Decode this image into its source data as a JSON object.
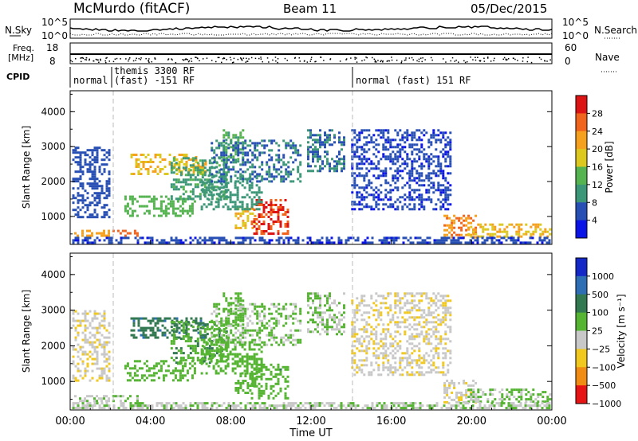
{
  "header": {
    "title": "McMurdo (fitACF)",
    "beam": "Beam 11",
    "date": "05/Dec/2015"
  },
  "strips": {
    "nsky_label": "N.Sky",
    "nsearch_label": "N.Search",
    "freq_label_1": "Freq.",
    "freq_label_2": "[MHz]",
    "nave_label": "Nave",
    "cpid_label": "CPID",
    "nsky_ticks": [
      "10^5",
      "10^0"
    ],
    "nsearch_ticks": [
      "10^5",
      "10^0"
    ],
    "freq_ticks": [
      "18",
      "8"
    ],
    "nave_ticks": [
      "60",
      "0"
    ],
    "modes": [
      "normal",
      "themis 3300 RF",
      "(fast) -151 RF",
      "normal (fast) 151 RF"
    ]
  },
  "chart_data": [
    {
      "type": "heatmap",
      "name": "power",
      "ylabel": "Slant Range [km]",
      "yticks": [
        1000,
        2000,
        3000,
        4000
      ],
      "ylim": [
        200,
        4600
      ],
      "xlim": [
        0,
        24
      ],
      "colorbar_label": "Power [dB]",
      "colorbar_ticks": [
        "28",
        "24",
        "20",
        "16",
        "12",
        "8",
        "4"
      ],
      "colorbar_colors": [
        "#dc1414",
        "#f0641e",
        "#f5a01e",
        "#dcc81e",
        "#55b450",
        "#3c9678",
        "#2850b4",
        "#0a14e6"
      ],
      "colorbar_range": [
        0,
        32
      ],
      "regions": [
        {
          "x": [
            0.2,
            1.9
          ],
          "y": [
            420,
            620
          ],
          "level": 22
        },
        {
          "x": [
            2.1,
            3.4
          ],
          "y": [
            420,
            620
          ],
          "level": 26
        },
        {
          "x": [
            3.0,
            6.7
          ],
          "y": [
            2200,
            2800
          ],
          "level": 20
        },
        {
          "x": [
            2.7,
            6.2
          ],
          "y": [
            1000,
            1600
          ],
          "level": 14
        },
        {
          "x": [
            5.0,
            7.8
          ],
          "y": [
            1500,
            2700
          ],
          "level": 11
        },
        {
          "x": [
            7.6,
            8.6
          ],
          "y": [
            2600,
            3500
          ],
          "level": 13
        },
        {
          "x": [
            8.2,
            9.2
          ],
          "y": [
            700,
            1250
          ],
          "level": 20
        },
        {
          "x": [
            9.0,
            10.8
          ],
          "y": [
            500,
            1500
          ],
          "level": 28
        },
        {
          "x": [
            6.5,
            9.5
          ],
          "y": [
            1200,
            2200
          ],
          "level": 10
        },
        {
          "x": [
            7.0,
            11.5
          ],
          "y": [
            2000,
            3200
          ],
          "level": 8
        },
        {
          "x": [
            11.8,
            13.6
          ],
          "y": [
            2300,
            3500
          ],
          "level": 8
        },
        {
          "x": [
            14.0,
            19.0
          ],
          "y": [
            1200,
            3500
          ],
          "level": 5
        },
        {
          "x": [
            0.1,
            2.0
          ],
          "y": [
            1000,
            3000
          ],
          "level": 6
        },
        {
          "x": [
            18.6,
            20.2
          ],
          "y": [
            400,
            1050
          ],
          "level": 24
        },
        {
          "x": [
            19.8,
            23.9
          ],
          "y": [
            400,
            800
          ],
          "level": 20
        },
        {
          "x": [
            0.1,
            23.9
          ],
          "y": [
            250,
            420
          ],
          "level": 5
        }
      ]
    },
    {
      "type": "heatmap",
      "name": "velocity",
      "ylabel": "Slant Range [km]",
      "yticks": [
        1000,
        2000,
        3000,
        4000
      ],
      "ylim": [
        200,
        4600
      ],
      "xlim": [
        0,
        24
      ],
      "xlabel": "Time UT",
      "xticks": [
        "00:00",
        "04:00",
        "08:00",
        "12:00",
        "16:00",
        "20:00",
        "00:00"
      ],
      "colorbar_label": "Velocity [m s⁻¹]",
      "colorbar_ticks": [
        "1000",
        "500",
        "100",
        "25",
        "−25",
        "−100",
        "−500",
        "−1000"
      ],
      "colorbar_colors": [
        "#1428c8",
        "#2d6eb4",
        "#327850",
        "#55b432",
        "#c8c8c8",
        "#f0c81e",
        "#f08c14",
        "#e61414"
      ],
      "colorbar_range": [
        -1500,
        1500
      ],
      "regions": [
        {
          "x": [
            0.2,
            1.9
          ],
          "y": [
            420,
            620
          ],
          "level": -40
        },
        {
          "x": [
            2.1,
            3.4
          ],
          "y": [
            420,
            620
          ],
          "level": 60
        },
        {
          "x": [
            3.0,
            6.7
          ],
          "y": [
            2200,
            2800
          ],
          "level": 600
        },
        {
          "x": [
            2.7,
            6.2
          ],
          "y": [
            1000,
            1600
          ],
          "level": 200
        },
        {
          "x": [
            5.0,
            7.8
          ],
          "y": [
            1500,
            2700
          ],
          "level": 300
        },
        {
          "x": [
            7.6,
            8.6
          ],
          "y": [
            2600,
            3500
          ],
          "level": 120
        },
        {
          "x": [
            8.2,
            9.2
          ],
          "y": [
            700,
            1250
          ],
          "level": 200
        },
        {
          "x": [
            9.0,
            10.8
          ],
          "y": [
            500,
            1500
          ],
          "level": 200
        },
        {
          "x": [
            6.5,
            9.5
          ],
          "y": [
            1200,
            2200
          ],
          "level": 200
        },
        {
          "x": [
            7.0,
            11.5
          ],
          "y": [
            2000,
            3200
          ],
          "level": 60
        },
        {
          "x": [
            11.8,
            13.6
          ],
          "y": [
            2300,
            3500
          ],
          "level": 10
        },
        {
          "x": [
            14.0,
            19.0
          ],
          "y": [
            1200,
            3500
          ],
          "level": -300
        },
        {
          "x": [
            0.1,
            2.0
          ],
          "y": [
            1000,
            3000
          ],
          "level": -300
        },
        {
          "x": [
            18.6,
            20.2
          ],
          "y": [
            400,
            1050
          ],
          "level": -300
        },
        {
          "x": [
            19.8,
            23.9
          ],
          "y": [
            400,
            800
          ],
          "level": 60
        },
        {
          "x": [
            0.1,
            23.9
          ],
          "y": [
            250,
            420
          ],
          "level": -40
        }
      ]
    }
  ]
}
